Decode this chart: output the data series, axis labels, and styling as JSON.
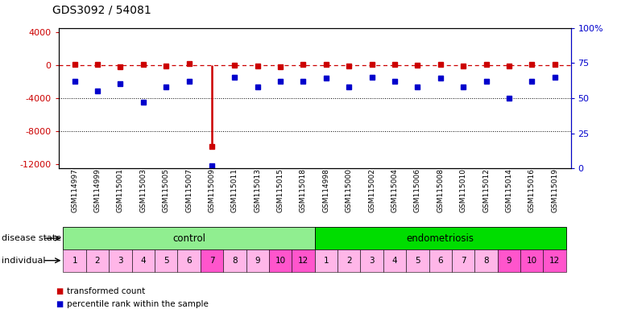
{
  "title": "GDS3092 / 54081",
  "samples": [
    "GSM114997",
    "GSM114999",
    "GSM115001",
    "GSM115003",
    "GSM115005",
    "GSM115007",
    "GSM115009",
    "GSM115011",
    "GSM115013",
    "GSM115015",
    "GSM115018",
    "GSM114998",
    "GSM115000",
    "GSM115002",
    "GSM115004",
    "GSM115006",
    "GSM115008",
    "GSM115010",
    "GSM115012",
    "GSM115014",
    "GSM115016",
    "GSM115019"
  ],
  "transformed_count": [
    50,
    120,
    -200,
    80,
    -100,
    150,
    -9800,
    -50,
    -80,
    -200,
    80,
    60,
    -100,
    80,
    120,
    -60,
    80,
    -120,
    50,
    -80,
    90,
    100
  ],
  "percentile_rank": [
    62,
    55,
    60,
    47,
    58,
    62,
    2,
    65,
    58,
    62,
    62,
    64,
    58,
    65,
    62,
    58,
    64,
    58,
    62,
    50,
    62,
    65
  ],
  "disease_state_groups": [
    {
      "label": "control",
      "start": 0,
      "end": 11,
      "color": "#90EE90"
    },
    {
      "label": "endometriosis",
      "start": 11,
      "end": 22,
      "color": "#00DD00"
    }
  ],
  "individual_labels_control": [
    "1",
    "2",
    "3",
    "4",
    "5",
    "6",
    "7",
    "8",
    "9",
    "10",
    "12"
  ],
  "individual_labels_endo": [
    "1",
    "2",
    "3",
    "4",
    "5",
    "6",
    "7",
    "8",
    "9",
    "10",
    "12"
  ],
  "individual_colors_control": [
    "#FFB6E8",
    "#FFB6E8",
    "#FFB6E8",
    "#FFB6E8",
    "#FFB6E8",
    "#FFB6E8",
    "#FF55CC",
    "#FFB6E8",
    "#FFB6E8",
    "#FF55CC",
    "#FF55CC"
  ],
  "individual_colors_endo": [
    "#FFB6E8",
    "#FFB6E8",
    "#FFB6E8",
    "#FFB6E8",
    "#FFB6E8",
    "#FFB6E8",
    "#FFB6E8",
    "#FFB6E8",
    "#FF55CC",
    "#FF55CC",
    "#FF55CC"
  ],
  "ylim_left": [
    -12500,
    4500
  ],
  "ylim_right": [
    0,
    100
  ],
  "yticks_left": [
    -12000,
    -8000,
    -4000,
    0,
    4000
  ],
  "yticks_right": [
    0,
    25,
    50,
    75,
    100
  ],
  "red_color": "#CC0000",
  "blue_color": "#0000CC",
  "bg_color": "#FFFFFF"
}
